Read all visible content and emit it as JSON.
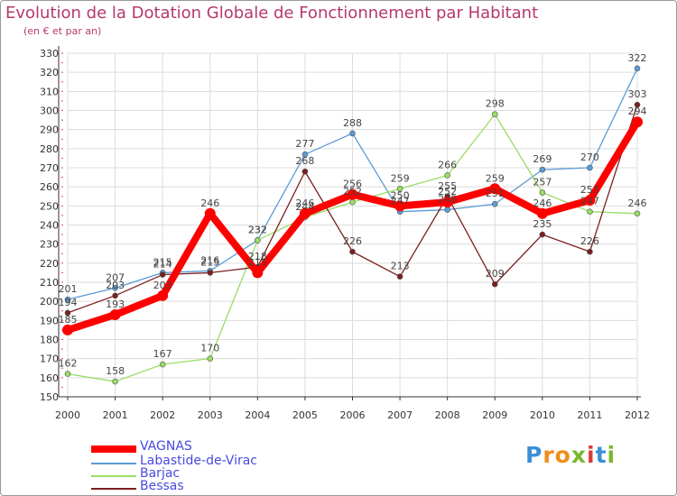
{
  "title": "Evolution de la Dotation Globale de Fonctionnement par Habitant",
  "subtitle": "(en € et par an)",
  "logo": {
    "text": "Proxiti",
    "letters": [
      {
        "ch": "P",
        "color": "#3a8fd8"
      },
      {
        "ch": "r",
        "color": "#f08c1a"
      },
      {
        "ch": "o",
        "color": "#f08c1a"
      },
      {
        "ch": "x",
        "color": "#79b82c"
      },
      {
        "ch": "i",
        "color": "#d83a3a"
      },
      {
        "ch": "t",
        "color": "#3a8fd8"
      },
      {
        "ch": "i",
        "color": "#79b82c"
      }
    ]
  },
  "chart_data": {
    "type": "line",
    "x": [
      "2000",
      "2001",
      "2002",
      "2003",
      "2004",
      "2005",
      "2006",
      "2007",
      "2008",
      "2009",
      "2010",
      "2011",
      "2012"
    ],
    "ylim": [
      150,
      330
    ],
    "yticks": [
      150,
      160,
      170,
      180,
      190,
      200,
      210,
      220,
      230,
      240,
      250,
      260,
      270,
      280,
      290,
      300,
      310,
      320,
      330
    ],
    "grid": true,
    "legend_position": "bottom-left",
    "series": [
      {
        "name": "VAGNAS",
        "color": "#ff0000",
        "values": [
          185,
          193,
          203,
          246,
          215,
          246,
          256,
          250,
          252,
          259,
          246,
          253,
          294
        ]
      },
      {
        "name": "Labastide-de-Virac",
        "color": "#5b9bd5",
        "values": [
          201,
          207,
          215,
          216,
          232,
          277,
          288,
          247,
          248,
          251,
          269,
          270,
          322
        ]
      },
      {
        "name": "Barjac",
        "color": "#99dd66",
        "values": [
          162,
          158,
          167,
          170,
          232,
          244,
          252,
          259,
          266,
          298,
          257,
          247,
          246
        ]
      },
      {
        "name": "Bessas",
        "color": "#7a1f1f",
        "values": [
          194,
          203,
          214,
          215,
          218,
          268,
          226,
          213,
          255,
          209,
          235,
          226,
          303
        ]
      }
    ]
  }
}
